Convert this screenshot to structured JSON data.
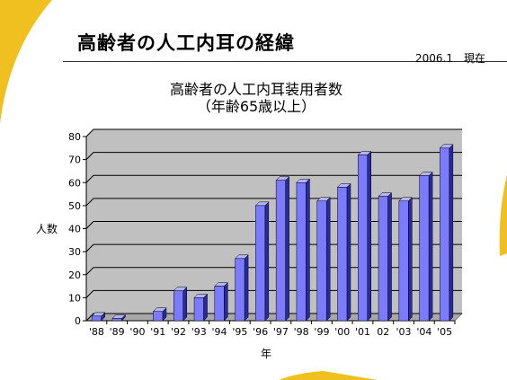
{
  "slide": {
    "title": "高齢者の人工内耳の経緯",
    "date_note": "2006.1　現在"
  },
  "chart_data": {
    "type": "bar",
    "title": "高齢者の人工内耳装用者数",
    "subtitle": "（年齢65歳以上）",
    "xlabel": "年",
    "ylabel": "人数",
    "categories": [
      "'88",
      "'89",
      "'90",
      "'91",
      "'92",
      "'93",
      "'94",
      "'95",
      "'96",
      "'97",
      "'98",
      "'99",
      "'00",
      "'01",
      "02",
      "'03",
      "'04",
      "'05"
    ],
    "values": [
      2,
      1,
      0,
      4,
      13,
      10,
      15,
      27,
      50,
      61,
      60,
      52,
      58,
      72,
      54,
      52,
      63,
      75
    ],
    "ylim": [
      0,
      80
    ],
    "yticks": [
      0,
      10,
      20,
      30,
      40,
      50,
      60,
      70,
      80
    ],
    "grid": true,
    "colors": {
      "bar_front": "#7b7bff",
      "bar_side": "#2a2aa0",
      "bar_top": "#b4b4ff",
      "plot_bg": "#c0c0c0",
      "accent_yellow": "#f0c020"
    }
  }
}
